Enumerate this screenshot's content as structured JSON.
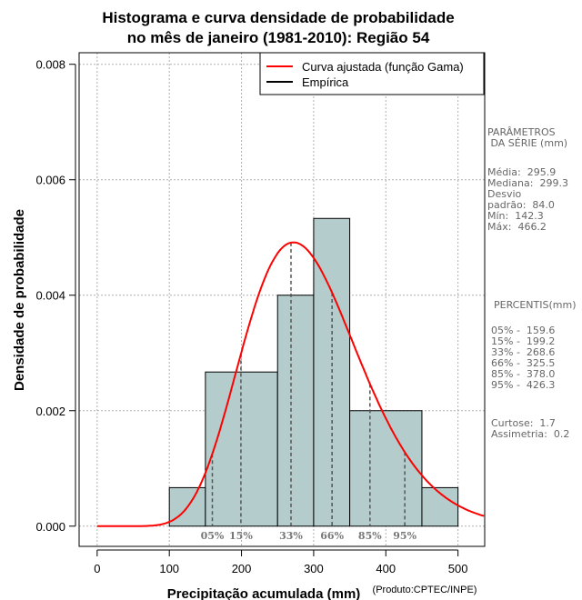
{
  "chart_data": {
    "type": "histogram",
    "title_line1": "Histograma e curva densidade de probabilidade",
    "title_line2": "no mês de janeiro (1981-2010): Região 54",
    "xlabel": "Precipitação acumulada (mm)",
    "ylabel": "Densidade de probabilidade",
    "credit": "(Produto:CPTEC/INPE)",
    "xlim": [
      -25,
      537
    ],
    "ylim": [
      -0.00035,
      0.0082
    ],
    "x_ticks": [
      0,
      100,
      200,
      300,
      400,
      500
    ],
    "x_tick_labels": [
      "0",
      "100",
      "200",
      "300",
      "400",
      "500"
    ],
    "y_ticks": [
      0,
      0.002,
      0.004,
      0.006,
      0.008
    ],
    "y_tick_labels": [
      "0.000",
      "0.002",
      "0.004",
      "0.006",
      "0.008"
    ],
    "grid": true,
    "bins": [
      {
        "start": 100,
        "end": 150,
        "density": 0.000667
      },
      {
        "start": 150,
        "end": 250,
        "density": 0.00267
      },
      {
        "start": 250,
        "end": 300,
        "density": 0.004
      },
      {
        "start": 300,
        "end": 350,
        "density": 0.00533
      },
      {
        "start": 350,
        "end": 450,
        "density": 0.002
      },
      {
        "start": 450,
        "end": 500,
        "density": 0.000667
      }
    ],
    "bar_color": "#b4cccc",
    "curve_color": "#ff0000",
    "gamma_fit": {
      "shape": 12.4,
      "scale": 23.86
    },
    "percentile_markers": [
      {
        "label": "05%",
        "value": 159.6
      },
      {
        "label": "15%",
        "value": 199.2
      },
      {
        "label": "33%",
        "value": 268.6
      },
      {
        "label": "66%",
        "value": 325.5
      },
      {
        "label": "85%",
        "value": 378.0
      },
      {
        "label": "95%",
        "value": 426.3
      }
    ],
    "legend": {
      "position": "top-right",
      "entries": [
        {
          "label": "Curva ajustada (função Gama)",
          "color": "#ff0000"
        },
        {
          "label": "Empírica",
          "color": "#000000"
        }
      ]
    }
  },
  "side_panel": {
    "params_title": "PARÂMETROS\n DA SÉRIE (mm)",
    "params_body": "Média:  295.9\nMediana:  299.3\nDesvio\npadrão:  84.0\nMín:  142.3\nMáx:  466.2",
    "percentis_title": "PERCENTIS(mm)",
    "percentis_body": "05% -  159.6\n15% -  199.2\n33% -  268.6\n66% -  325.5\n85% -  378.0\n95% -  426.3",
    "stats_body": "Curtose:  1.7\nAssimetria:  0.2"
  }
}
